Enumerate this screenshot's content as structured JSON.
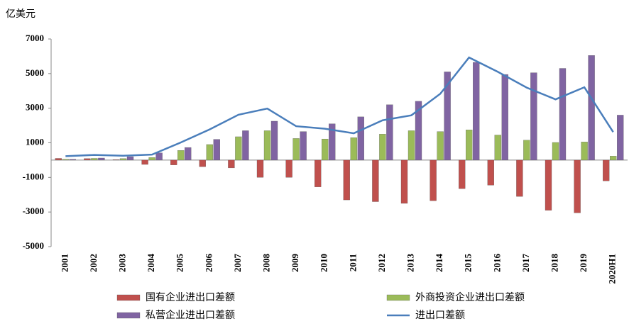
{
  "chart_data": {
    "type": "bar",
    "unit_label": "亿美元",
    "categories": [
      "2001",
      "2002",
      "2003",
      "2004",
      "2005",
      "2006",
      "2007",
      "2008",
      "2009",
      "2010",
      "2011",
      "2012",
      "2013",
      "2014",
      "2015",
      "2016",
      "2017",
      "2018",
      "2019",
      "2020H1"
    ],
    "series": [
      {
        "name": "国有企业进出口差额",
        "kind": "bar",
        "color": "#c0504d",
        "values": [
          100,
          90,
          30,
          -250,
          -280,
          -380,
          -450,
          -1000,
          -1000,
          -1550,
          -2300,
          -2400,
          -2500,
          -2350,
          -1650,
          -1450,
          -2100,
          -2900,
          -3050,
          -1200
        ]
      },
      {
        "name": "外商投资企业进出口差额",
        "kind": "bar",
        "color": "#9bbb59",
        "values": [
          50,
          100,
          90,
          150,
          560,
          900,
          1350,
          1700,
          1250,
          1220,
          1300,
          1500,
          1700,
          1650,
          1750,
          1450,
          1150,
          1020,
          1050,
          230
        ]
      },
      {
        "name": "私营企业进出口差额",
        "kind": "bar",
        "color": "#8064a2",
        "values": [
          50,
          120,
          200,
          420,
          730,
          1200,
          1700,
          2250,
          1650,
          2100,
          2500,
          3200,
          3400,
          5100,
          5650,
          4950,
          5050,
          5300,
          6050,
          2600
        ]
      },
      {
        "name": "进出口差额",
        "kind": "line",
        "color": "#4a7ebb",
        "values": [
          225,
          300,
          255,
          320,
          1020,
          1775,
          2620,
          2980,
          1960,
          1815,
          1550,
          2300,
          2590,
          3830,
          5930,
          5100,
          4190,
          3510,
          4210,
          1620
        ]
      }
    ],
    "ylim": [
      -5000,
      7000
    ],
    "yticks": [
      7000,
      5000,
      3000,
      1000,
      -1000,
      -3000,
      -5000
    ],
    "grid": false,
    "legend": "bottom"
  }
}
